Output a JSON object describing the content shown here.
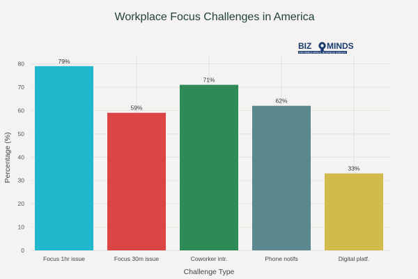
{
  "chart_data": {
    "type": "bar",
    "title": "Workplace Focus Challenges in America",
    "xlabel": "Challenge Type",
    "ylabel": "Percentage (%)",
    "ylim": [
      0,
      80
    ],
    "yticks": [
      0,
      10,
      20,
      30,
      40,
      50,
      60,
      70,
      80
    ],
    "grid": true,
    "categories": [
      "Focus 1hr issue",
      "Focus 30m issue",
      "Coworker intr.",
      "Phone notifs",
      "Digital platf."
    ],
    "values": [
      79,
      59,
      71,
      62,
      33
    ],
    "value_labels": [
      "79%",
      "59%",
      "71%",
      "62%",
      "33%"
    ],
    "colors": [
      "#1fb8cd",
      "#db4545",
      "#2e8b57",
      "#5d878f",
      "#d2ba4c"
    ]
  },
  "logo": {
    "name_left": "BIZ",
    "name_right": "MINDS",
    "tagline": "INFORMED MINDS, BUSINESS INSIGHT",
    "color": "#1a3a6e"
  }
}
